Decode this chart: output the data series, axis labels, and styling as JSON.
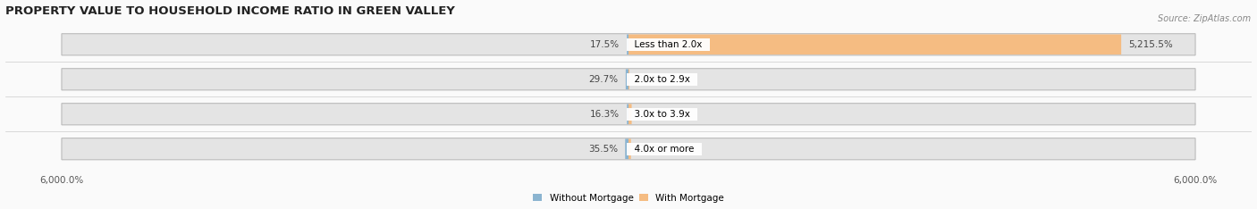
{
  "title": "PROPERTY VALUE TO HOUSEHOLD INCOME RATIO IN GREEN VALLEY",
  "source": "Source: ZipAtlas.com",
  "categories": [
    "Less than 2.0x",
    "2.0x to 2.9x",
    "3.0x to 3.9x",
    "4.0x or more"
  ],
  "without_mortgage": [
    17.5,
    29.7,
    16.3,
    35.5
  ],
  "with_mortgage": [
    5215.5,
    9.8,
    33.7,
    25.7
  ],
  "xlim": 6000.0,
  "bar_color_left": "#8BB4D0",
  "bar_color_right": "#F5BC82",
  "background_bar": "#E4E4E4",
  "background_bar_sep": "#CCCCCC",
  "background_fig": "#FAFAFA",
  "title_fontsize": 9.5,
  "label_fontsize": 7.5,
  "tick_fontsize": 7.5,
  "legend_fontsize": 7.5,
  "source_fontsize": 7.0
}
